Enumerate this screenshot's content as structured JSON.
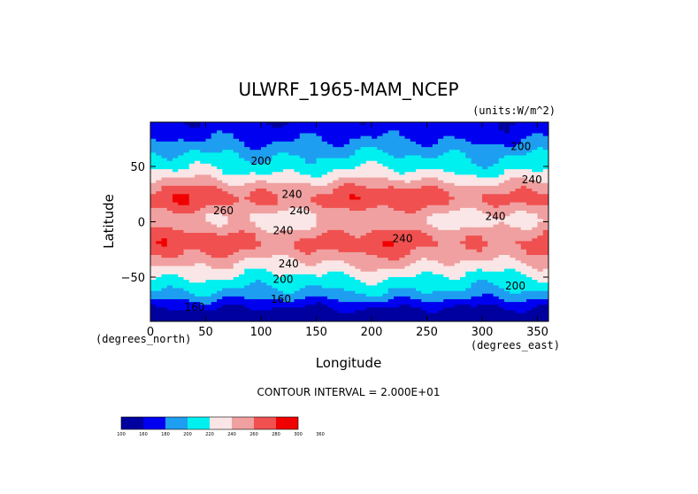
{
  "chart_data": {
    "type": "heatmap",
    "title": "ULWRF_1965-MAM_NCEP",
    "units": "(units:W/m^2)",
    "xlabel": "Longitude",
    "ylabel": "Latitude",
    "x_units": "(degrees_east)",
    "y_units": "(degrees_north)",
    "xlim": [
      0,
      360
    ],
    "ylim": [
      -90,
      90
    ],
    "x_ticks": [
      0,
      50,
      100,
      150,
      200,
      250,
      300,
      350
    ],
    "y_ticks": [
      50,
      0,
      -50
    ],
    "x_tick_labels": [
      "0",
      "50",
      "100",
      "150",
      "200",
      "250",
      "300",
      "350"
    ],
    "y_tick_labels": [
      "50",
      "0",
      "−50"
    ],
    "contour_interval": "CONTOUR INTERVAL = 2.000E+01",
    "levels": [
      100,
      160,
      180,
      200,
      220,
      240,
      260,
      280,
      300,
      360
    ],
    "level_labels": [
      "100",
      "160",
      "180",
      "200",
      "220",
      "240",
      "260",
      "280",
      "300",
      "360"
    ],
    "colors": [
      "#00009e",
      "#0000f0",
      "#1e9ef0",
      "#00f0f0",
      "#fae6e6",
      "#f0a0a0",
      "#f05050",
      "#f00000"
    ],
    "latitude_profile": [
      {
        "lat": 90,
        "value": 165
      },
      {
        "lat": 82,
        "value": 170
      },
      {
        "lat": 75,
        "value": 178
      },
      {
        "lat": 68,
        "value": 188
      },
      {
        "lat": 60,
        "value": 200
      },
      {
        "lat": 50,
        "value": 212
      },
      {
        "lat": 40,
        "value": 232
      },
      {
        "lat": 30,
        "value": 258
      },
      {
        "lat": 22,
        "value": 268
      },
      {
        "lat": 15,
        "value": 262
      },
      {
        "lat": 8,
        "value": 245
      },
      {
        "lat": 2,
        "value": 238
      },
      {
        "lat": -5,
        "value": 245
      },
      {
        "lat": -12,
        "value": 262
      },
      {
        "lat": -20,
        "value": 266
      },
      {
        "lat": -28,
        "value": 258
      },
      {
        "lat": -35,
        "value": 245
      },
      {
        "lat": -42,
        "value": 232
      },
      {
        "lat": -50,
        "value": 218
      },
      {
        "lat": -58,
        "value": 206
      },
      {
        "lat": -66,
        "value": 192
      },
      {
        "lat": -72,
        "value": 175
      },
      {
        "lat": -78,
        "value": 160
      },
      {
        "lat": -85,
        "value": 145
      },
      {
        "lat": -90,
        "value": 140
      }
    ],
    "contour_labels": [
      {
        "text": "200",
        "lon": 100,
        "lat": 55
      },
      {
        "text": "200",
        "lon": 335,
        "lat": 68
      },
      {
        "text": "240",
        "lon": 345,
        "lat": 38
      },
      {
        "text": "240",
        "lon": 128,
        "lat": 25
      },
      {
        "text": "240",
        "lon": 135,
        "lat": 10
      },
      {
        "text": "260",
        "lon": 66,
        "lat": 10
      },
      {
        "text": "240",
        "lon": 312,
        "lat": 5
      },
      {
        "text": "240",
        "lon": 120,
        "lat": -8
      },
      {
        "text": "240",
        "lon": 228,
        "lat": -15
      },
      {
        "text": "240",
        "lon": 125,
        "lat": -38
      },
      {
        "text": "200",
        "lon": 120,
        "lat": -52
      },
      {
        "text": "200",
        "lon": 330,
        "lat": -58
      },
      {
        "text": "160",
        "lon": 118,
        "lat": -70
      },
      {
        "text": "160",
        "lon": 40,
        "lat": -77
      }
    ]
  }
}
